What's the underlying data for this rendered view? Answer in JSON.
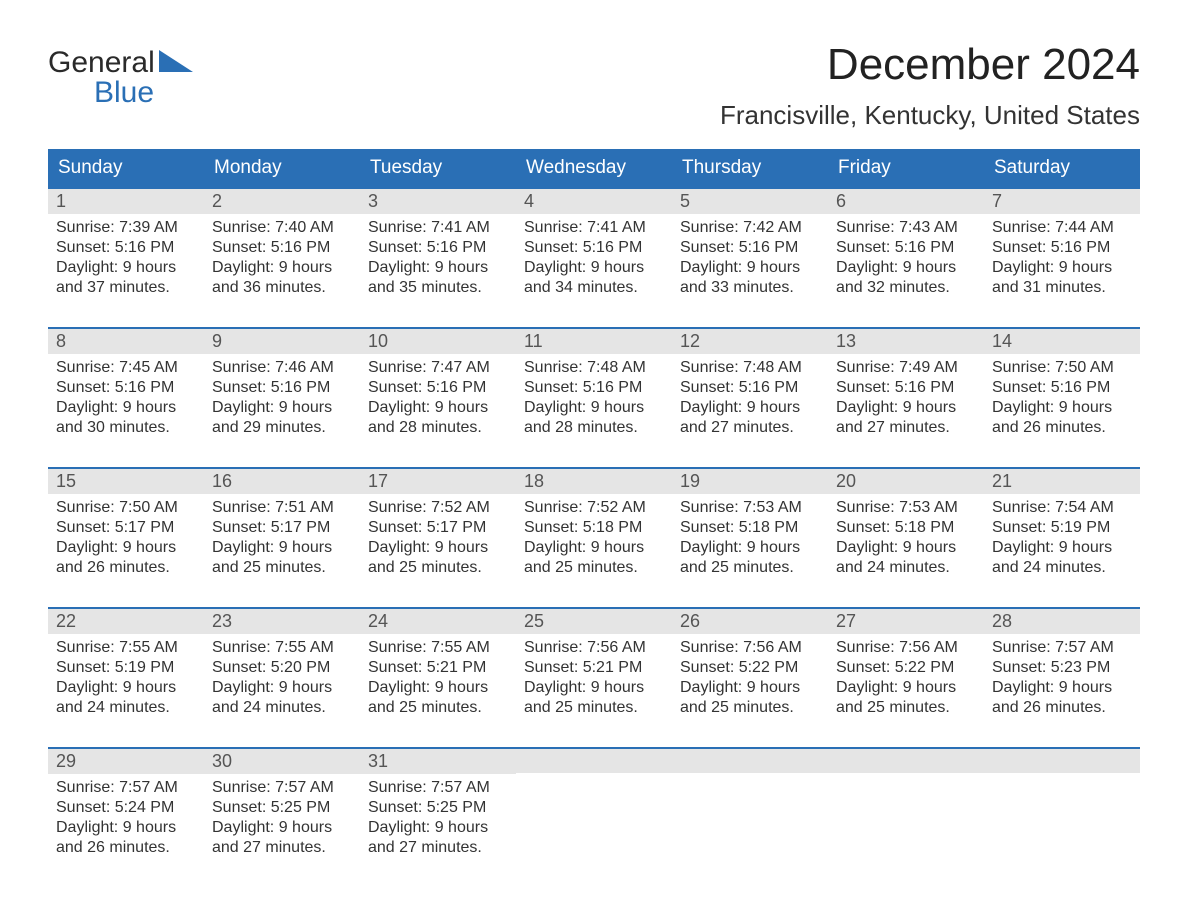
{
  "logo": {
    "line1": "General",
    "line2": "Blue"
  },
  "title": "December 2024",
  "location": "Francisville, Kentucky, United States",
  "colors": {
    "header_bg": "#2a6fb5",
    "header_text": "#ffffff",
    "daynum_bg": "#e5e5e5",
    "body_text": "#333333",
    "week_border": "#2a6fb5",
    "logo_blue": "#2a6fb5",
    "page_bg": "#ffffff"
  },
  "typography": {
    "month_title_fontsize": 44,
    "location_fontsize": 26,
    "day_header_fontsize": 19,
    "daynum_fontsize": 18,
    "cell_fontsize": 16
  },
  "day_names": [
    "Sunday",
    "Monday",
    "Tuesday",
    "Wednesday",
    "Thursday",
    "Friday",
    "Saturday"
  ],
  "weeks": [
    [
      {
        "n": "1",
        "sunrise": "7:39 AM",
        "sunset": "5:16 PM",
        "d1": "Daylight: 9 hours",
        "d2": "and 37 minutes."
      },
      {
        "n": "2",
        "sunrise": "7:40 AM",
        "sunset": "5:16 PM",
        "d1": "Daylight: 9 hours",
        "d2": "and 36 minutes."
      },
      {
        "n": "3",
        "sunrise": "7:41 AM",
        "sunset": "5:16 PM",
        "d1": "Daylight: 9 hours",
        "d2": "and 35 minutes."
      },
      {
        "n": "4",
        "sunrise": "7:41 AM",
        "sunset": "5:16 PM",
        "d1": "Daylight: 9 hours",
        "d2": "and 34 minutes."
      },
      {
        "n": "5",
        "sunrise": "7:42 AM",
        "sunset": "5:16 PM",
        "d1": "Daylight: 9 hours",
        "d2": "and 33 minutes."
      },
      {
        "n": "6",
        "sunrise": "7:43 AM",
        "sunset": "5:16 PM",
        "d1": "Daylight: 9 hours",
        "d2": "and 32 minutes."
      },
      {
        "n": "7",
        "sunrise": "7:44 AM",
        "sunset": "5:16 PM",
        "d1": "Daylight: 9 hours",
        "d2": "and 31 minutes."
      }
    ],
    [
      {
        "n": "8",
        "sunrise": "7:45 AM",
        "sunset": "5:16 PM",
        "d1": "Daylight: 9 hours",
        "d2": "and 30 minutes."
      },
      {
        "n": "9",
        "sunrise": "7:46 AM",
        "sunset": "5:16 PM",
        "d1": "Daylight: 9 hours",
        "d2": "and 29 minutes."
      },
      {
        "n": "10",
        "sunrise": "7:47 AM",
        "sunset": "5:16 PM",
        "d1": "Daylight: 9 hours",
        "d2": "and 28 minutes."
      },
      {
        "n": "11",
        "sunrise": "7:48 AM",
        "sunset": "5:16 PM",
        "d1": "Daylight: 9 hours",
        "d2": "and 28 minutes."
      },
      {
        "n": "12",
        "sunrise": "7:48 AM",
        "sunset": "5:16 PM",
        "d1": "Daylight: 9 hours",
        "d2": "and 27 minutes."
      },
      {
        "n": "13",
        "sunrise": "7:49 AM",
        "sunset": "5:16 PM",
        "d1": "Daylight: 9 hours",
        "d2": "and 27 minutes."
      },
      {
        "n": "14",
        "sunrise": "7:50 AM",
        "sunset": "5:16 PM",
        "d1": "Daylight: 9 hours",
        "d2": "and 26 minutes."
      }
    ],
    [
      {
        "n": "15",
        "sunrise": "7:50 AM",
        "sunset": "5:17 PM",
        "d1": "Daylight: 9 hours",
        "d2": "and 26 minutes."
      },
      {
        "n": "16",
        "sunrise": "7:51 AM",
        "sunset": "5:17 PM",
        "d1": "Daylight: 9 hours",
        "d2": "and 25 minutes."
      },
      {
        "n": "17",
        "sunrise": "7:52 AM",
        "sunset": "5:17 PM",
        "d1": "Daylight: 9 hours",
        "d2": "and 25 minutes."
      },
      {
        "n": "18",
        "sunrise": "7:52 AM",
        "sunset": "5:18 PM",
        "d1": "Daylight: 9 hours",
        "d2": "and 25 minutes."
      },
      {
        "n": "19",
        "sunrise": "7:53 AM",
        "sunset": "5:18 PM",
        "d1": "Daylight: 9 hours",
        "d2": "and 25 minutes."
      },
      {
        "n": "20",
        "sunrise": "7:53 AM",
        "sunset": "5:18 PM",
        "d1": "Daylight: 9 hours",
        "d2": "and 24 minutes."
      },
      {
        "n": "21",
        "sunrise": "7:54 AM",
        "sunset": "5:19 PM",
        "d1": "Daylight: 9 hours",
        "d2": "and 24 minutes."
      }
    ],
    [
      {
        "n": "22",
        "sunrise": "7:55 AM",
        "sunset": "5:19 PM",
        "d1": "Daylight: 9 hours",
        "d2": "and 24 minutes."
      },
      {
        "n": "23",
        "sunrise": "7:55 AM",
        "sunset": "5:20 PM",
        "d1": "Daylight: 9 hours",
        "d2": "and 24 minutes."
      },
      {
        "n": "24",
        "sunrise": "7:55 AM",
        "sunset": "5:21 PM",
        "d1": "Daylight: 9 hours",
        "d2": "and 25 minutes."
      },
      {
        "n": "25",
        "sunrise": "7:56 AM",
        "sunset": "5:21 PM",
        "d1": "Daylight: 9 hours",
        "d2": "and 25 minutes."
      },
      {
        "n": "26",
        "sunrise": "7:56 AM",
        "sunset": "5:22 PM",
        "d1": "Daylight: 9 hours",
        "d2": "and 25 minutes."
      },
      {
        "n": "27",
        "sunrise": "7:56 AM",
        "sunset": "5:22 PM",
        "d1": "Daylight: 9 hours",
        "d2": "and 25 minutes."
      },
      {
        "n": "28",
        "sunrise": "7:57 AM",
        "sunset": "5:23 PM",
        "d1": "Daylight: 9 hours",
        "d2": "and 26 minutes."
      }
    ],
    [
      {
        "n": "29",
        "sunrise": "7:57 AM",
        "sunset": "5:24 PM",
        "d1": "Daylight: 9 hours",
        "d2": "and 26 minutes."
      },
      {
        "n": "30",
        "sunrise": "7:57 AM",
        "sunset": "5:25 PM",
        "d1": "Daylight: 9 hours",
        "d2": "and 27 minutes."
      },
      {
        "n": "31",
        "sunrise": "7:57 AM",
        "sunset": "5:25 PM",
        "d1": "Daylight: 9 hours",
        "d2": "and 27 minutes."
      },
      {
        "empty": true
      },
      {
        "empty": true
      },
      {
        "empty": true
      },
      {
        "empty": true
      }
    ]
  ],
  "labels": {
    "sunrise_prefix": "Sunrise: ",
    "sunset_prefix": "Sunset: "
  }
}
